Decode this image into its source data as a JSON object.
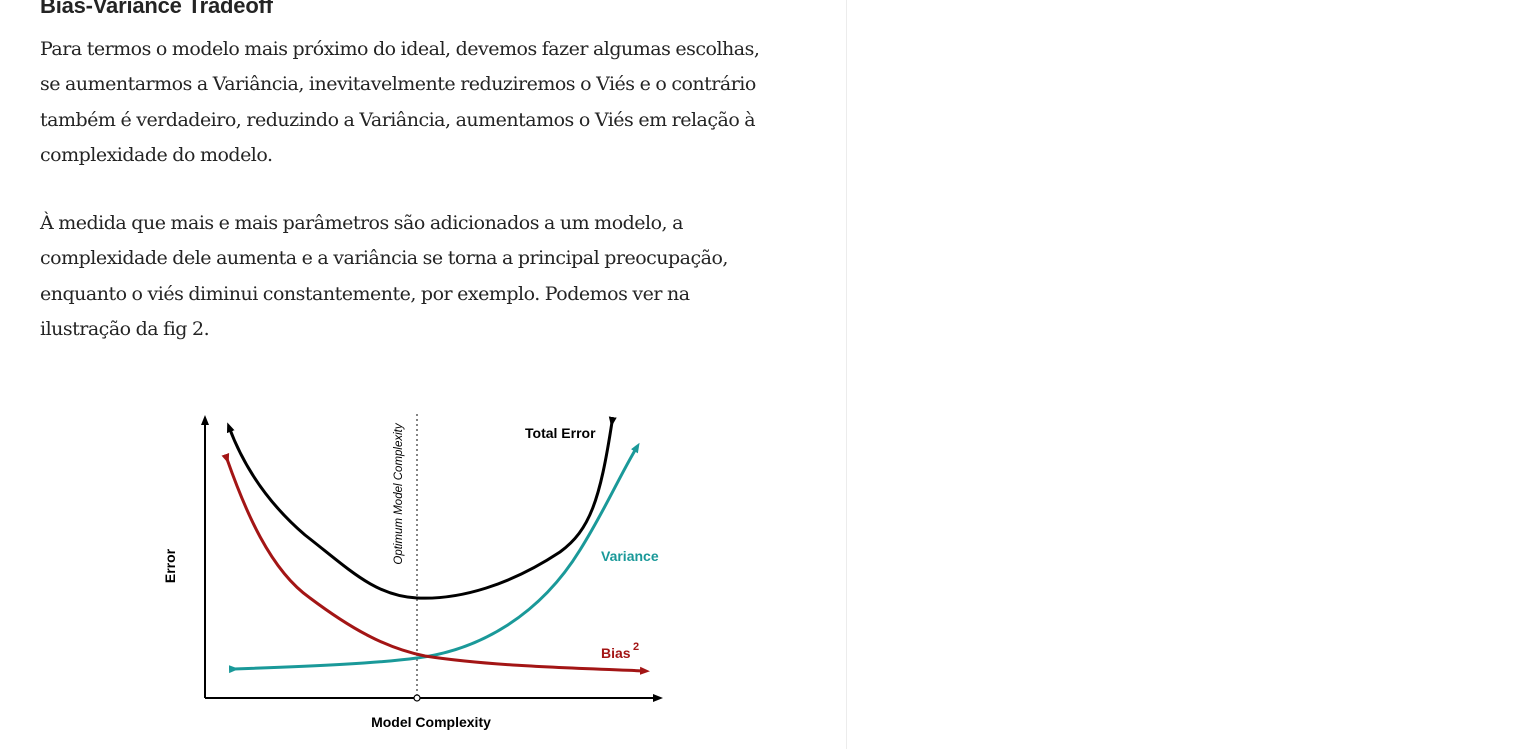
{
  "article": {
    "heading": "Bias-Variance Tradeoff",
    "paragraph_1_lines": [
      "Para termos o modelo mais próximo do ideal, devemos fazer algumas escolhas,",
      "se aumentarmos a Variância, inevitavelmente reduziremos o Viés e o contrário",
      "também é verdadeiro, reduzindo a Variância, aumentamos o Viés em relação à",
      "complexidade do modelo."
    ],
    "paragraph_2_lines": [
      "À medida que mais e mais parâmetros são adicionados a um modelo, a",
      "complexidade dele aumenta e a variância se torna a principal preocupação,",
      "enquanto o viés diminui constantemente, por exemplo. Podemos ver na",
      "ilustração da fig 2."
    ]
  },
  "figure": {
    "x_label": "Model Complexity",
    "y_label": "Error",
    "optimum_label": "Optimum Model Complexity",
    "curve_labels": {
      "total_error": "Total Error",
      "variance": "Variance",
      "bias": "Bias",
      "bias_superscript": "2"
    },
    "colors": {
      "total_error": "#000000",
      "variance": "#1a9999",
      "bias": "#a31515",
      "axes": "#000000"
    }
  }
}
